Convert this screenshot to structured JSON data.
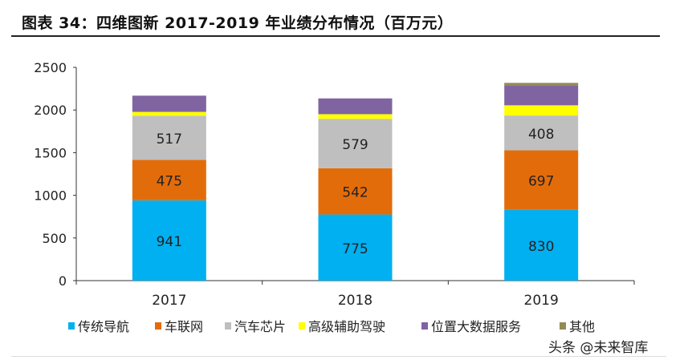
{
  "title": "图表 34：四维图新 2017-2019 年业绩分布情况（百万元）",
  "watermark": "头条 @未来智库",
  "chart_data": {
    "type": "bar",
    "stacked": true,
    "title": "图表 34：四维图新 2017-2019 年业绩分布情况（百万元）",
    "categories": [
      "2017",
      "2018",
      "2019"
    ],
    "ylim": [
      0,
      2500
    ],
    "yticks": [
      0,
      500,
      1000,
      1500,
      2000,
      2500
    ],
    "grid": false,
    "legend_position": "bottom",
    "series": [
      {
        "name": "传统导航",
        "color": "#00B0F0",
        "values": [
          941,
          775,
          830
        ],
        "labels": true
      },
      {
        "name": "车联网",
        "color": "#E36C0A",
        "values": [
          475,
          542,
          697
        ],
        "labels": true
      },
      {
        "name": "汽车芯片",
        "color": "#BFBFBF",
        "values": [
          517,
          579,
          408
        ],
        "labels": true
      },
      {
        "name": "高级辅助驾驶",
        "color": "#FFFF00",
        "values": [
          45,
          55,
          120
        ],
        "labels": false
      },
      {
        "name": "位置大数据服务",
        "color": "#8064A2",
        "values": [
          190,
          185,
          235
        ],
        "labels": false
      },
      {
        "name": "其他",
        "color": "#948A54",
        "values": [
          0,
          0,
          28
        ],
        "labels": false
      }
    ]
  }
}
